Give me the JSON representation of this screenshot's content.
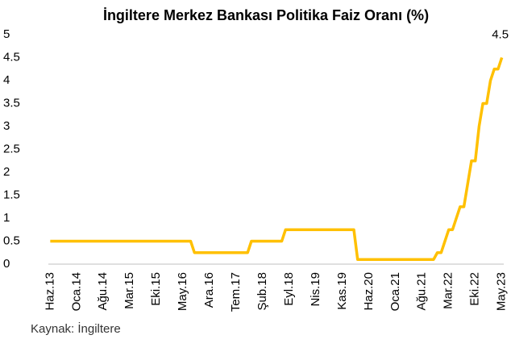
{
  "chart_data": {
    "type": "line",
    "title": "İngiltere Merkez Bankası Politika Faiz Oranı (%)",
    "source": "Kaynak: İngiltere",
    "color": "#FFC000",
    "categories": [
      "Haz.13",
      null,
      null,
      null,
      null,
      null,
      null,
      "Oca.14",
      null,
      null,
      null,
      null,
      null,
      null,
      "Ağu.14",
      null,
      null,
      null,
      null,
      null,
      null,
      "Mar.15",
      null,
      null,
      null,
      null,
      null,
      null,
      "Eki.15",
      null,
      null,
      null,
      null,
      null,
      null,
      "May.16",
      null,
      null,
      null,
      null,
      null,
      null,
      "Ara.16",
      null,
      null,
      null,
      null,
      null,
      null,
      "Tem.17",
      null,
      null,
      null,
      null,
      null,
      null,
      "Şub.18",
      null,
      null,
      null,
      null,
      null,
      null,
      "Eyl.18",
      null,
      null,
      null,
      null,
      null,
      null,
      "Nis.19",
      null,
      null,
      null,
      null,
      null,
      null,
      "Kas.19",
      null,
      null,
      null,
      null,
      null,
      null,
      "Haz.20",
      null,
      null,
      null,
      null,
      null,
      null,
      "Oca.21",
      null,
      null,
      null,
      null,
      null,
      null,
      "Ağu.21",
      null,
      null,
      null,
      null,
      null,
      null,
      "Mar.22",
      null,
      null,
      null,
      null,
      null,
      null,
      "Eki.22",
      null,
      null,
      null,
      null,
      null,
      null,
      "May.23"
    ],
    "values": [
      0.5,
      0.5,
      0.5,
      0.5,
      0.5,
      0.5,
      0.5,
      0.5,
      0.5,
      0.5,
      0.5,
      0.5,
      0.5,
      0.5,
      0.5,
      0.5,
      0.5,
      0.5,
      0.5,
      0.5,
      0.5,
      0.5,
      0.5,
      0.5,
      0.5,
      0.5,
      0.5,
      0.5,
      0.5,
      0.5,
      0.5,
      0.5,
      0.5,
      0.5,
      0.5,
      0.5,
      0.5,
      0.5,
      0.25,
      0.25,
      0.25,
      0.25,
      0.25,
      0.25,
      0.25,
      0.25,
      0.25,
      0.25,
      0.25,
      0.25,
      0.25,
      0.25,
      0.25,
      0.5,
      0.5,
      0.5,
      0.5,
      0.5,
      0.5,
      0.5,
      0.5,
      0.5,
      0.75,
      0.75,
      0.75,
      0.75,
      0.75,
      0.75,
      0.75,
      0.75,
      0.75,
      0.75,
      0.75,
      0.75,
      0.75,
      0.75,
      0.75,
      0.75,
      0.75,
      0.75,
      0.75,
      0.1,
      0.1,
      0.1,
      0.1,
      0.1,
      0.1,
      0.1,
      0.1,
      0.1,
      0.1,
      0.1,
      0.1,
      0.1,
      0.1,
      0.1,
      0.1,
      0.1,
      0.1,
      0.1,
      0.1,
      0.1,
      0.25,
      0.25,
      0.5,
      0.75,
      0.75,
      1.0,
      1.25,
      1.25,
      1.75,
      2.25,
      2.25,
      3.0,
      3.5,
      3.5,
      4.0,
      4.25,
      4.25,
      4.5
    ],
    "ylim": [
      0,
      5
    ],
    "yticks": [
      0,
      0.5,
      1,
      1.5,
      2,
      2.5,
      3,
      3.5,
      4,
      4.5,
      5
    ],
    "grid": false
  }
}
